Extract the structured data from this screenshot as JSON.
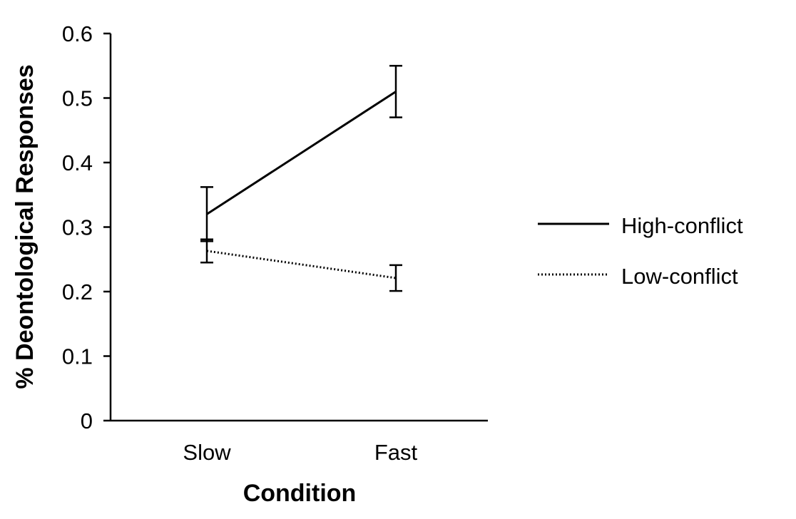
{
  "chart_data": {
    "type": "line",
    "categories": [
      "Slow",
      "Fast"
    ],
    "series": [
      {
        "name": "High-conflict",
        "style": "solid",
        "values": [
          0.32,
          0.51
        ],
        "error": [
          0.042,
          0.04
        ]
      },
      {
        "name": "Low-conflict",
        "style": "dotted",
        "values": [
          0.263,
          0.221
        ],
        "error": [
          0.018,
          0.02
        ]
      }
    ],
    "title": "",
    "xlabel": "Condition",
    "ylabel": "% Deontological Responses",
    "ylim": [
      0,
      0.6
    ],
    "yticks": [
      "0",
      "0.1",
      "0.2",
      "0.3",
      "0.4",
      "0.5",
      "0.6"
    ],
    "grid": false,
    "legend_position": "right",
    "colors": {
      "line": "#000000"
    }
  }
}
